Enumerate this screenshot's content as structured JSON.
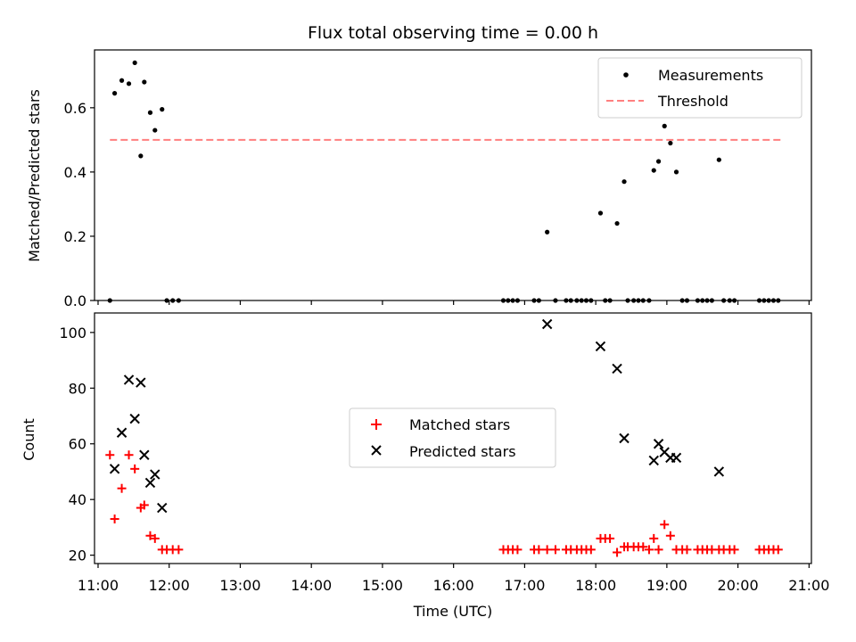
{
  "chart_data": [
    {
      "type": "scatter",
      "title": "Flux total observing time = 0.00 h",
      "xlabel": "",
      "ylabel": "Matched/Predicted stars",
      "xlim": [
        "10:57",
        "21:02"
      ],
      "ylim": [
        0,
        0.78
      ],
      "yticks": [
        0.0,
        0.2,
        0.4,
        0.6
      ],
      "ytick_labels": [
        "0.0",
        "0.2",
        "0.4",
        "0.6"
      ],
      "legend_position": "top-right",
      "series": [
        {
          "name": "Measurements",
          "marker": "dot",
          "color": "#000000",
          "points": [
            [
              "11:10",
              0.0
            ],
            [
              "11:14",
              0.645
            ],
            [
              "11:20",
              0.685
            ],
            [
              "11:26",
              0.675
            ],
            [
              "11:31",
              0.74
            ],
            [
              "11:36",
              0.45
            ],
            [
              "11:39",
              0.68
            ],
            [
              "11:44",
              0.585
            ],
            [
              "11:48",
              0.53
            ],
            [
              "11:54",
              0.595
            ],
            [
              "11:58",
              0.0
            ],
            [
              "12:03",
              0.0
            ],
            [
              "12:08",
              0.0
            ],
            [
              "16:42",
              0.0
            ],
            [
              "16:46",
              0.0
            ],
            [
              "16:50",
              0.0
            ],
            [
              "16:54",
              0.0
            ],
            [
              "17:08",
              0.0
            ],
            [
              "17:12",
              0.0
            ],
            [
              "17:19",
              0.213
            ],
            [
              "17:26",
              0.0
            ],
            [
              "17:35",
              0.0
            ],
            [
              "17:39",
              0.0
            ],
            [
              "17:44",
              0.0
            ],
            [
              "17:48",
              0.0
            ],
            [
              "17:52",
              0.0
            ],
            [
              "17:56",
              0.0
            ],
            [
              "18:04",
              0.272
            ],
            [
              "18:08",
              0.0
            ],
            [
              "18:12",
              0.0
            ],
            [
              "18:18",
              0.24
            ],
            [
              "18:24",
              0.37
            ],
            [
              "18:27",
              0.0
            ],
            [
              "18:32",
              0.0
            ],
            [
              "18:36",
              0.0
            ],
            [
              "18:40",
              0.0
            ],
            [
              "18:45",
              0.0
            ],
            [
              "18:49",
              0.405
            ],
            [
              "18:53",
              0.433
            ],
            [
              "18:58",
              0.543
            ],
            [
              "19:03",
              0.49
            ],
            [
              "19:08",
              0.4
            ],
            [
              "19:13",
              0.0
            ],
            [
              "19:17",
              0.0
            ],
            [
              "19:26",
              0.0
            ],
            [
              "19:30",
              0.0
            ],
            [
              "19:34",
              0.0
            ],
            [
              "19:38",
              0.0
            ],
            [
              "19:44",
              0.438
            ],
            [
              "19:48",
              0.0
            ],
            [
              "19:53",
              0.0
            ],
            [
              "19:57",
              0.0
            ],
            [
              "20:18",
              0.0
            ],
            [
              "20:22",
              0.0
            ],
            [
              "20:26",
              0.0
            ],
            [
              "20:30",
              0.0
            ],
            [
              "20:34",
              0.0
            ]
          ]
        },
        {
          "name": "Threshold",
          "style": "dashed-line",
          "color": "#ff7f7f",
          "points": [
            [
              "11:10",
              0.5
            ],
            [
              "20:36",
              0.5
            ]
          ]
        }
      ]
    },
    {
      "type": "scatter",
      "title": "",
      "xlabel": "Time (UTC)",
      "ylabel": "Count",
      "xlim": [
        "10:57",
        "21:02"
      ],
      "ylim": [
        17,
        107
      ],
      "yticks": [
        20,
        40,
        60,
        80,
        100
      ],
      "ytick_labels": [
        "20",
        "40",
        "60",
        "80",
        "100"
      ],
      "xticks": [
        "11:00",
        "12:00",
        "13:00",
        "14:00",
        "15:00",
        "16:00",
        "17:00",
        "18:00",
        "19:00",
        "20:00",
        "21:00"
      ],
      "legend_position": "center",
      "series": [
        {
          "name": "Matched stars",
          "marker": "plus",
          "color": "#ff0000",
          "points": [
            [
              "11:10",
              56
            ],
            [
              "11:14",
              33
            ],
            [
              "11:20",
              44
            ],
            [
              "11:26",
              56
            ],
            [
              "11:31",
              51
            ],
            [
              "11:36",
              37
            ],
            [
              "11:39",
              38
            ],
            [
              "11:44",
              27
            ],
            [
              "11:48",
              26
            ],
            [
              "11:54",
              22
            ],
            [
              "11:58",
              22
            ],
            [
              "12:03",
              22
            ],
            [
              "12:08",
              22
            ],
            [
              "16:42",
              22
            ],
            [
              "16:46",
              22
            ],
            [
              "16:50",
              22
            ],
            [
              "16:54",
              22
            ],
            [
              "17:08",
              22
            ],
            [
              "17:12",
              22
            ],
            [
              "17:19",
              22
            ],
            [
              "17:26",
              22
            ],
            [
              "17:35",
              22
            ],
            [
              "17:39",
              22
            ],
            [
              "17:44",
              22
            ],
            [
              "17:48",
              22
            ],
            [
              "17:52",
              22
            ],
            [
              "17:56",
              22
            ],
            [
              "18:04",
              26
            ],
            [
              "18:08",
              26
            ],
            [
              "18:12",
              26
            ],
            [
              "18:18",
              21
            ],
            [
              "18:24",
              23
            ],
            [
              "18:27",
              23
            ],
            [
              "18:32",
              23
            ],
            [
              "18:36",
              23
            ],
            [
              "18:40",
              23
            ],
            [
              "18:45",
              22
            ],
            [
              "18:49",
              26
            ],
            [
              "18:53",
              22
            ],
            [
              "18:58",
              31
            ],
            [
              "19:03",
              27
            ],
            [
              "19:08",
              22
            ],
            [
              "19:13",
              22
            ],
            [
              "19:17",
              22
            ],
            [
              "19:26",
              22
            ],
            [
              "19:30",
              22
            ],
            [
              "19:34",
              22
            ],
            [
              "19:38",
              22
            ],
            [
              "19:44",
              22
            ],
            [
              "19:48",
              22
            ],
            [
              "19:53",
              22
            ],
            [
              "19:57",
              22
            ],
            [
              "20:18",
              22
            ],
            [
              "20:22",
              22
            ],
            [
              "20:26",
              22
            ],
            [
              "20:30",
              22
            ],
            [
              "20:34",
              22
            ]
          ]
        },
        {
          "name": "Predicted stars",
          "marker": "x",
          "color": "#000000",
          "points": [
            [
              "11:14",
              51
            ],
            [
              "11:20",
              64
            ],
            [
              "11:26",
              83
            ],
            [
              "11:31",
              69
            ],
            [
              "11:36",
              82
            ],
            [
              "11:39",
              56
            ],
            [
              "11:44",
              46
            ],
            [
              "11:48",
              49
            ],
            [
              "11:54",
              37
            ],
            [
              "17:19",
              103
            ],
            [
              "18:04",
              95
            ],
            [
              "18:18",
              87
            ],
            [
              "18:24",
              62
            ],
            [
              "18:49",
              54
            ],
            [
              "18:53",
              60
            ],
            [
              "18:58",
              57
            ],
            [
              "19:03",
              55
            ],
            [
              "19:08",
              55
            ],
            [
              "19:44",
              50
            ]
          ]
        }
      ]
    }
  ]
}
